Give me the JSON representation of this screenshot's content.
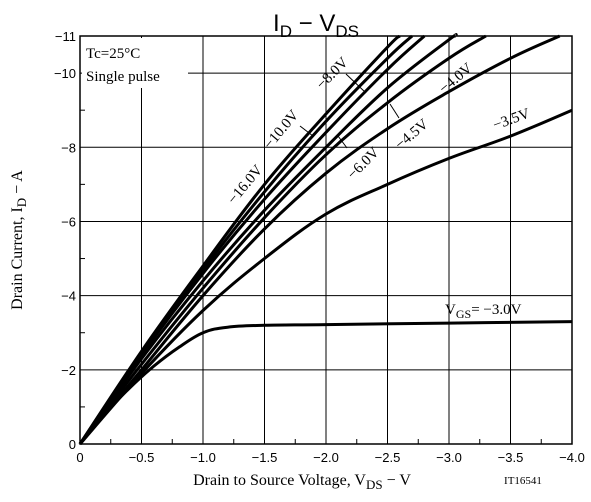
{
  "chart_data": {
    "type": "line",
    "title": "ID − VDS",
    "xlabel": "Drain to Source Voltage, VDS − V",
    "ylabel": "Drain Current, ID − A",
    "xlim": [
      0,
      -4.0
    ],
    "ylim": [
      0,
      -11
    ],
    "x_ticks": [
      "0",
      "−0.5",
      "−1.0",
      "−1.5",
      "−2.0",
      "−2.5",
      "−3.0",
      "−3.5",
      "−4.0"
    ],
    "y_ticks": [
      "0",
      "−2",
      "−4",
      "−6",
      "−8",
      "−10",
      "−11"
    ],
    "grid": true,
    "conditions": [
      "Tc=25°C",
      "Single pulse"
    ],
    "figure_id": "IT16541",
    "series": [
      {
        "name": "VGS= −3.0V",
        "x": [
          0,
          -0.2,
          -0.4,
          -0.6,
          -0.8,
          -1.0,
          -1.2,
          -1.5,
          -2.0,
          -3.0,
          -4.0
        ],
        "y": [
          0,
          -0.8,
          -1.5,
          -2.1,
          -2.6,
          -3.0,
          -3.15,
          -3.2,
          -3.22,
          -3.26,
          -3.3
        ]
      },
      {
        "name": "−3.5V",
        "x": [
          0,
          -0.5,
          -1.0,
          -1.5,
          -2.0,
          -2.5,
          -3.0,
          -3.5,
          -4.0
        ],
        "y": [
          0,
          -1.9,
          -3.6,
          -5.0,
          -6.2,
          -7.0,
          -7.7,
          -8.3,
          -9.0
        ]
      },
      {
        "name": "−4.0V",
        "x": [
          0,
          -0.5,
          -1.0,
          -1.5,
          -2.0,
          -2.5,
          -3.0,
          -3.5,
          -3.9
        ],
        "y": [
          0,
          -2.0,
          -4.0,
          -5.8,
          -7.3,
          -8.5,
          -9.5,
          -10.4,
          -11
        ]
      },
      {
        "name": "−4.5V",
        "x": [
          0,
          -0.5,
          -1.0,
          -1.5,
          -2.0,
          -2.5,
          -3.0,
          -3.3
        ],
        "y": [
          0,
          -2.15,
          -4.2,
          -6.1,
          -7.8,
          -9.2,
          -10.4,
          -11
        ]
      },
      {
        "name": "−6.0V",
        "x": [
          0,
          -0.5,
          -1.0,
          -1.5,
          -2.0,
          -2.5,
          -3.0,
          -3.05
        ],
        "y": [
          0,
          -2.3,
          -4.4,
          -6.3,
          -8.0,
          -9.6,
          -10.9,
          -11
        ]
      },
      {
        "name": "−8.0V",
        "x": [
          0,
          -0.5,
          -1.0,
          -1.5,
          -2.0,
          -2.5,
          -2.8
        ],
        "y": [
          0,
          -2.4,
          -4.6,
          -6.6,
          -8.4,
          -10.1,
          -11
        ]
      },
      {
        "name": "−10.0V",
        "x": [
          0,
          -0.5,
          -1.0,
          -1.5,
          -2.0,
          -2.5,
          -2.7
        ],
        "y": [
          0,
          -2.45,
          -4.7,
          -6.8,
          -8.7,
          -10.4,
          -11
        ]
      },
      {
        "name": "−16.0V",
        "x": [
          0,
          -0.5,
          -1.0,
          -1.5,
          -2.0,
          -2.5,
          -2.6
        ],
        "y": [
          0,
          -2.5,
          -4.8,
          -7.0,
          -8.9,
          -10.7,
          -11
        ]
      }
    ]
  }
}
